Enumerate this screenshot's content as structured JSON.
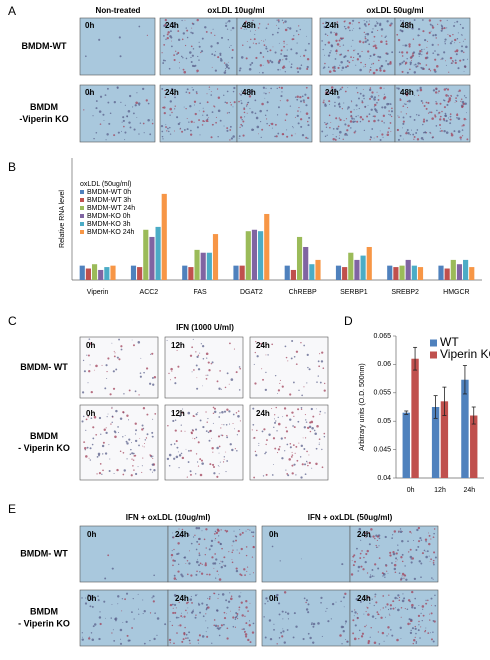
{
  "panel_labels": [
    "A",
    "B",
    "C",
    "D",
    "E"
  ],
  "panel_a": {
    "columns": [
      "Non-treated",
      "oxLDL 10ug/ml",
      "oxLDL 50ug/ml"
    ],
    "rows": [
      [
        "BMDM-WT"
      ],
      [
        "BMDM",
        "-Viperin KO"
      ]
    ],
    "times": [
      "0h",
      "24h",
      "48h"
    ]
  },
  "panel_c": {
    "header": "IFN (1000 U/ml)",
    "rows": [
      [
        "BMDM- WT"
      ],
      [
        "BMDM",
        "- Viperin KO"
      ]
    ],
    "times": [
      "0h",
      "12h",
      "24h"
    ]
  },
  "panel_e": {
    "columns": [
      "IFN + oxLDL (10ug/ml)",
      "IFN + oxLDL (50ug/ml)"
    ],
    "rows": [
      [
        "BMDM- WT"
      ],
      [
        "BMDM",
        "- Viperin KO"
      ]
    ],
    "times": [
      "0h",
      "24h"
    ]
  },
  "chart_data": [
    {
      "type": "bar",
      "ylabel": "Relative RNA level",
      "legend_title": "oxLDL (50ug/ml)",
      "categories": [
        "Viperin",
        "ACC2",
        "FAS",
        "DGAT2",
        "ChREBP",
        "SERBP1",
        "SREBP2",
        "HMGCR"
      ],
      "ylim": [
        0,
        8.5
      ],
      "series": [
        {
          "name": "BMDM-WT  0h",
          "color": "#4f81bd",
          "values": [
            1.0,
            1.0,
            1.0,
            1.0,
            1.0,
            1.0,
            1.0,
            1.0
          ]
        },
        {
          "name": "BMDM-WT  3h",
          "color": "#c0504d",
          "values": [
            0.8,
            0.9,
            0.9,
            1.0,
            0.7,
            0.9,
            0.9,
            0.8
          ]
        },
        {
          "name": "BMDM-WT  24h",
          "color": "#9bbb59",
          "values": [
            1.1,
            3.5,
            2.1,
            3.4,
            3.0,
            1.9,
            1.0,
            1.4
          ]
        },
        {
          "name": "BMDM-KO  0h",
          "color": "#8064a2",
          "values": [
            0.7,
            3.0,
            1.9,
            3.5,
            2.3,
            1.4,
            1.4,
            1.1
          ]
        },
        {
          "name": "BMDM-KO  3h",
          "color": "#4bacc6",
          "values": [
            0.9,
            3.7,
            1.9,
            3.4,
            1.1,
            1.7,
            1.0,
            1.4
          ]
        },
        {
          "name": "BMDM-KO  24h",
          "color": "#f79646",
          "values": [
            1.0,
            6.0,
            3.2,
            4.6,
            1.4,
            2.3,
            0.9,
            0.9
          ]
        }
      ]
    },
    {
      "type": "bar",
      "ylabel": "Arbitrary units (O.D. 500nm)",
      "categories": [
        "0h",
        "12h",
        "24h"
      ],
      "ylim": [
        0.04,
        0.065
      ],
      "yticks": [
        0.04,
        0.045,
        0.05,
        0.055,
        0.06,
        0.065
      ],
      "legend": "upper-right",
      "series": [
        {
          "name": "WT",
          "color": "#4f81bd",
          "values": [
            0.0515,
            0.0525,
            0.0573
          ],
          "errors": [
            0.0003,
            0.002,
            0.0025
          ]
        },
        {
          "name": "Viperin KO",
          "color": "#c0504d",
          "values": [
            0.061,
            0.0535,
            0.051
          ],
          "errors": [
            0.002,
            0.0025,
            0.0015
          ]
        }
      ]
    }
  ]
}
